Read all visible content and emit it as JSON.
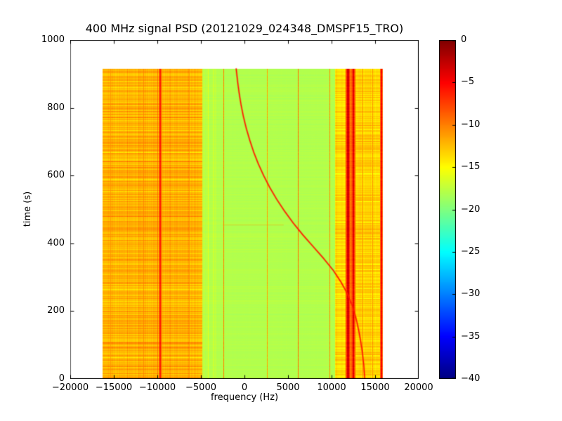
{
  "chart_data": {
    "type": "heatmap",
    "title": "400 MHz signal PSD (20121029_024348_DMSPF15_TRO)",
    "xlabel": "frequency (Hz)",
    "ylabel": "time (s)",
    "xlim": [
      -20000,
      20000
    ],
    "ylim": [
      0,
      1000
    ],
    "xticks": [
      -20000,
      -15000,
      -10000,
      -5000,
      0,
      5000,
      10000,
      15000,
      20000
    ],
    "yticks": [
      0,
      200,
      400,
      600,
      800,
      1000
    ],
    "grid": false,
    "colormap": "jet",
    "colorbar": {
      "vmin": -40,
      "vmax": 0,
      "ticks": [
        0,
        -5,
        -10,
        -15,
        -20,
        -25,
        -30,
        -35,
        -40
      ],
      "position": "right"
    },
    "data_extent": {
      "freq": [
        -16300,
        15900
      ],
      "time": [
        0,
        915
      ]
    },
    "background_bands": [
      {
        "freq": [
          -16300,
          -4800
        ],
        "psd_db": -12,
        "description": "orange noise band with horizontal striping"
      },
      {
        "freq": [
          -4800,
          10400
        ],
        "psd_db": -18,
        "description": "uniform yellow-green low-power band"
      },
      {
        "freq": [
          10400,
          15900
        ],
        "psd_db": -13.5,
        "description": "yellow noise band with horizontal striping"
      }
    ],
    "spectral_lines": [
      {
        "freq": -15400,
        "psd_db": -11,
        "width_hz": 80
      },
      {
        "freq": -13800,
        "psd_db": -11.2,
        "width_hz": 80
      },
      {
        "freq": -11600,
        "psd_db": -10.5,
        "width_hz": 80
      },
      {
        "freq": -9950,
        "psd_db": -9.5,
        "width_hz": 70
      },
      {
        "freq": -9650,
        "psd_db": -6,
        "width_hz": 160
      },
      {
        "freq": -6300,
        "psd_db": -10.8,
        "width_hz": 70
      },
      {
        "freq": -2350,
        "psd_db": -10,
        "width_hz": 80
      },
      {
        "freq": 2600,
        "psd_db": -11.5,
        "width_hz": 70
      },
      {
        "freq": 6200,
        "psd_db": -9.5,
        "width_hz": 80
      },
      {
        "freq": 9800,
        "psd_db": -10.5,
        "width_hz": 70
      },
      {
        "freq": 11900,
        "psd_db": -3.5,
        "width_hz": 240
      },
      {
        "freq": 12500,
        "psd_db": -4,
        "width_hz": 200
      },
      {
        "freq": 13600,
        "psd_db": -10.5,
        "width_hz": 90
      },
      {
        "freq": 14700,
        "psd_db": -11,
        "width_hz": 90
      },
      {
        "freq": 15750,
        "psd_db": -5,
        "width_hz": 160
      }
    ],
    "horizontal_feature": {
      "time": 455,
      "freq": [
        -2500,
        4500
      ],
      "psd_db": -11
    },
    "doppler_track": {
      "description": "satellite Doppler S-curve",
      "psd_db": -6,
      "points": [
        [
          915,
          -950
        ],
        [
          880,
          -800
        ],
        [
          845,
          -620
        ],
        [
          810,
          -400
        ],
        [
          775,
          -130
        ],
        [
          740,
          200
        ],
        [
          705,
          600
        ],
        [
          670,
          1050
        ],
        [
          635,
          1580
        ],
        [
          600,
          2200
        ],
        [
          565,
          2900
        ],
        [
          530,
          3700
        ],
        [
          495,
          4600
        ],
        [
          460,
          5600
        ],
        [
          425,
          6700
        ],
        [
          390,
          7900
        ],
        [
          355,
          9100
        ],
        [
          320,
          10200
        ],
        [
          285,
          11100
        ],
        [
          250,
          11850
        ],
        [
          215,
          12400
        ],
        [
          180,
          12800
        ],
        [
          145,
          13100
        ],
        [
          110,
          13350
        ],
        [
          75,
          13550
        ],
        [
          40,
          13700
        ],
        [
          0,
          13800
        ]
      ]
    }
  }
}
